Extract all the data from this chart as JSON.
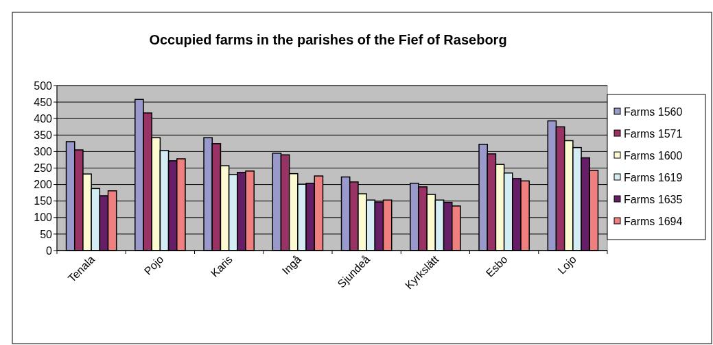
{
  "chart_data": {
    "type": "bar",
    "title": "Occupied farms in the parishes of the Fief of Raseborg",
    "categories": [
      "Tenala",
      "Pojo",
      "Karis",
      "Ingå",
      "Sjundeå",
      "Kyrkslätt",
      "Esbo",
      "Lojo"
    ],
    "series": [
      {
        "name": "Farms 1560",
        "color": "#9999cc",
        "values": [
          330,
          458,
          342,
          295,
          223,
          204,
          322,
          393
        ]
      },
      {
        "name": "Farms 1571",
        "color": "#993366",
        "values": [
          305,
          417,
          324,
          290,
          208,
          193,
          293,
          375
        ]
      },
      {
        "name": "Farms 1600",
        "color": "#fcfad0",
        "values": [
          232,
          342,
          257,
          233,
          172,
          170,
          261,
          333
        ]
      },
      {
        "name": "Farms 1619",
        "color": "#d4ecf4",
        "values": [
          188,
          303,
          230,
          201,
          153,
          153,
          235,
          312
        ]
      },
      {
        "name": "Farms 1635",
        "color": "#661f66",
        "values": [
          166,
          272,
          237,
          204,
          147,
          146,
          218,
          281
        ]
      },
      {
        "name": "Farms 1694",
        "color": "#f08080",
        "values": [
          181,
          278,
          241,
          226,
          153,
          135,
          211,
          243
        ]
      }
    ],
    "ylim": [
      0,
      500
    ],
    "yticks": [
      0,
      50,
      100,
      150,
      200,
      250,
      300,
      350,
      400,
      450,
      500
    ],
    "grid": "y",
    "legend": "right"
  }
}
